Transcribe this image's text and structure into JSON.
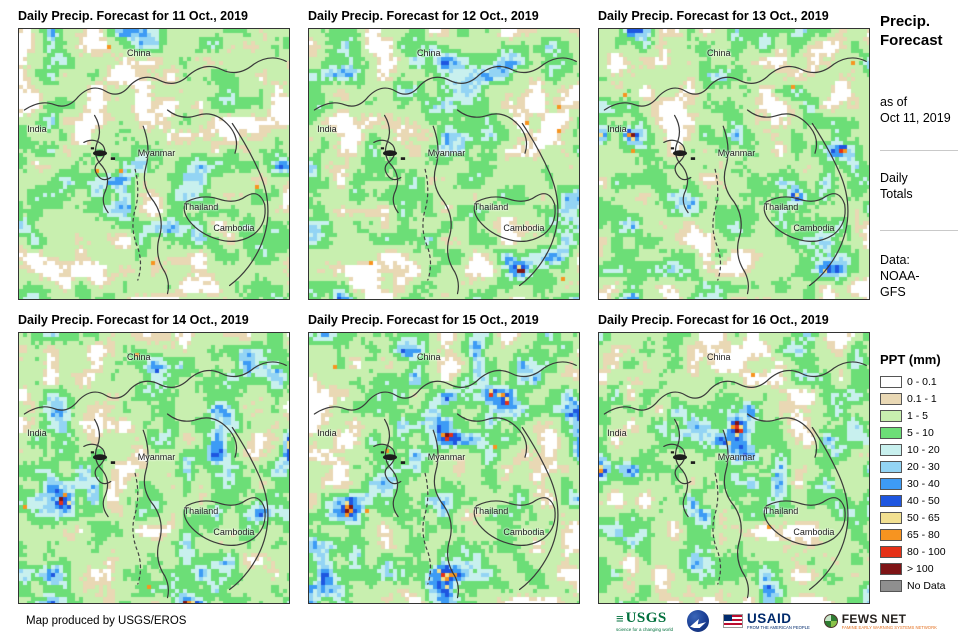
{
  "panels": [
    {
      "title": "Daily Precip. Forecast for 11 Oct., 2019"
    },
    {
      "title": "Daily Precip. Forecast for 12 Oct., 2019"
    },
    {
      "title": "Daily Precip. Forecast for 13 Oct., 2019"
    },
    {
      "title": "Daily Precip. Forecast for 14 Oct., 2019"
    },
    {
      "title": "Daily Precip. Forecast for 15 Oct., 2019"
    },
    {
      "title": "Daily Precip. Forecast for 16 Oct., 2019"
    }
  ],
  "map_labels": [
    {
      "name": "China"
    },
    {
      "name": "India"
    },
    {
      "name": "Myanmar"
    },
    {
      "name": "Thailand"
    },
    {
      "name": "Cambodia"
    }
  ],
  "sidebar": {
    "title": "Precip. Forecast",
    "as_of": [
      "as of",
      "Oct 11, 2019"
    ],
    "totals": [
      "Daily",
      "Totals"
    ],
    "data_source": [
      "Data:",
      "NOAA-",
      "GFS"
    ]
  },
  "legend": {
    "title": "PPT (mm)",
    "items": [
      {
        "label": "0 - 0.1",
        "color": "#FFFFFF"
      },
      {
        "label": "0.1 - 1",
        "color": "#E9D8B4"
      },
      {
        "label": "1 - 5",
        "color": "#C8EFAF"
      },
      {
        "label": "5 - 10",
        "color": "#6CDE77"
      },
      {
        "label": "10 - 20",
        "color": "#C8F0EE"
      },
      {
        "label": "20 - 30",
        "color": "#93D4F4"
      },
      {
        "label": "30 - 40",
        "color": "#3D9BF5"
      },
      {
        "label": "40 - 50",
        "color": "#1E56E0"
      },
      {
        "label": "50 - 65",
        "color": "#F2E091"
      },
      {
        "label": "65 - 80",
        "color": "#F79420"
      },
      {
        "label": "80 - 100",
        "color": "#E53117"
      },
      {
        "label": "> 100",
        "color": "#7E1416"
      },
      {
        "label": "No Data",
        "color": "#8F8F8F"
      }
    ]
  },
  "footer": {
    "credit": "Map produced by USGS/EROS",
    "logos": {
      "usgs": {
        "text": "USGS",
        "tagline": "science for a changing world"
      },
      "noaa": {
        "name": "NOAA"
      },
      "usaid": {
        "text": "USAID",
        "tagline": "FROM THE AMERICAN PEOPLE"
      },
      "fewsnet": {
        "text": "FEWS NET",
        "tagline": "FAMINE EARLY WARNING SYSTEMS NETWORK"
      }
    }
  }
}
